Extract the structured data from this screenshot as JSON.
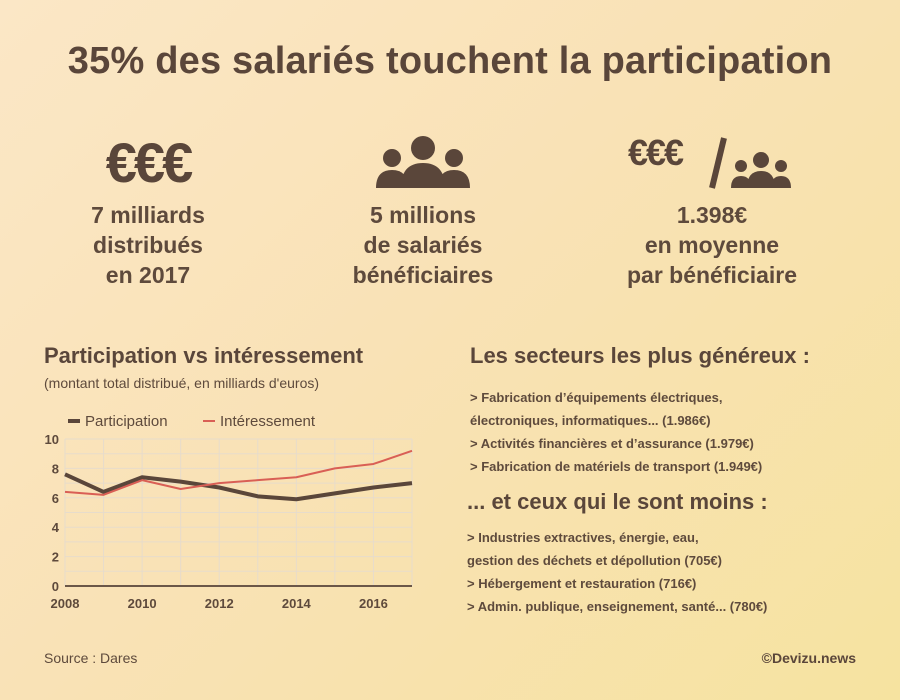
{
  "title": "35% des salariés touchent la participation",
  "stats": [
    {
      "icon": "euros-icon",
      "symbol": "€€€",
      "lines": [
        "7 milliards",
        "distribués",
        "en 2017"
      ]
    },
    {
      "icon": "people-icon",
      "lines": [
        "5 millions",
        "de salariés",
        "bénéficiaires"
      ]
    },
    {
      "icon": "euros-per-person-icon",
      "symbol": "€€€",
      "lines": [
        "1.398€",
        "en moyenne",
        "par bénéficiaire"
      ]
    }
  ],
  "chart_section": {
    "title": "Participation vs intéressement",
    "subtitle": "(montant total distribué, en milliards d'euros)"
  },
  "chart_data": {
    "type": "line",
    "x": [
      2008,
      2009,
      2010,
      2011,
      2012,
      2013,
      2014,
      2015,
      2016,
      2017
    ],
    "series": [
      {
        "name": "Participation",
        "color": "#5a463a",
        "values": [
          7.6,
          6.4,
          7.4,
          7.1,
          6.7,
          6.1,
          5.9,
          6.3,
          6.7,
          7.0
        ]
      },
      {
        "name": "Intéressement",
        "color": "#d95f55",
        "values": [
          6.4,
          6.2,
          7.2,
          6.6,
          7.0,
          7.2,
          7.4,
          8.0,
          8.3,
          9.2
        ]
      }
    ],
    "xticks": [
      "2008",
      "2010",
      "2012",
      "2014",
      "2016"
    ],
    "yticks": [
      "0",
      "2",
      "4",
      "6",
      "8",
      "10"
    ],
    "xlim": [
      2008,
      2017
    ],
    "ylim": [
      0,
      10
    ],
    "grid": true,
    "legend": "top"
  },
  "sectors_generous": {
    "title": "Les secteurs les plus généreux :",
    "items": [
      "> Fabrication d’équipements électriques,",
      "électroniques, informatiques... (1.986€)",
      "> Activités financières et d’assurance (1.979€)",
      "> Fabrication de matériels de transport (1.949€)"
    ]
  },
  "sectors_less": {
    "title": "... et ceux qui le sont moins :",
    "items": [
      "> Industries extractives, énergie, eau,",
      "gestion des déchets et dépollution (705€)",
      "> Hébergement et restauration (716€)",
      "> Admin. publique, enseignement, santé... (780€)"
    ]
  },
  "source": "Source : Dares",
  "credit": "©Devizu.news"
}
